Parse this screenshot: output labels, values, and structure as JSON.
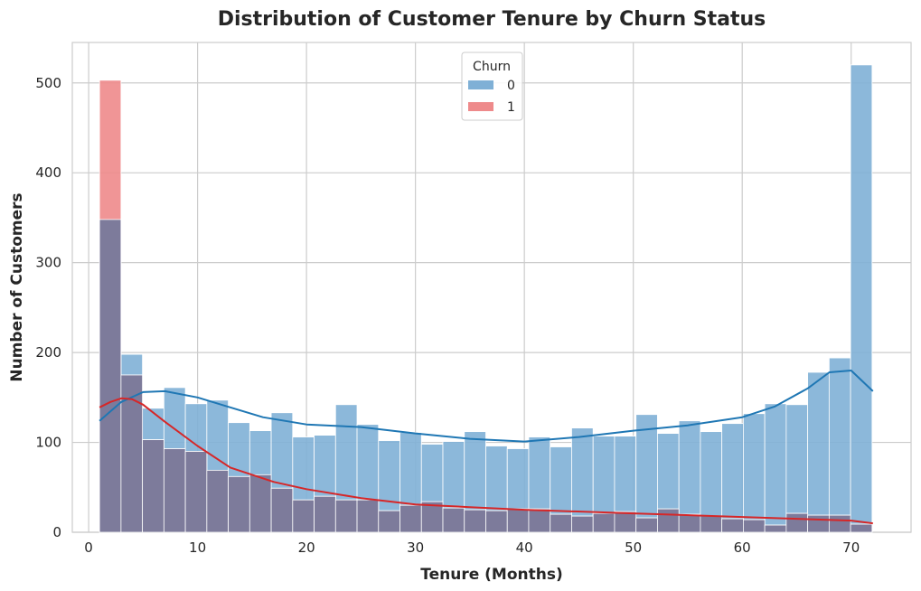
{
  "chart_data": {
    "type": "histogram",
    "title": "Distribution of Customer Tenure by Churn Status",
    "xlabel": "Tenure (Months)",
    "ylabel": "Number of Customers",
    "xlim": [
      -1.5,
      75.5
    ],
    "ylim": [
      0,
      545
    ],
    "xticks": [
      0,
      10,
      20,
      30,
      40,
      50,
      60,
      70
    ],
    "yticks": [
      0,
      100,
      200,
      300,
      400,
      500
    ],
    "grid": true,
    "bin_start": 1,
    "bin_width": 1.97,
    "legend": {
      "title": "Churn",
      "placement": "upper-center",
      "entries": [
        {
          "label": "0",
          "color": "#1f77b4"
        },
        {
          "label": "1",
          "color": "#d62728"
        }
      ]
    },
    "series": [
      {
        "label": "0",
        "color": "#1f77b4",
        "values": [
          348,
          198,
          138,
          161,
          143,
          147,
          122,
          113,
          133,
          106,
          108,
          142,
          120,
          102,
          111,
          98,
          101,
          112,
          96,
          93,
          106,
          95,
          116,
          107,
          107,
          131,
          110,
          124,
          112,
          121,
          132,
          143,
          142,
          178,
          194,
          520
        ],
        "kde": [
          [
            1,
            124
          ],
          [
            3,
            145
          ],
          [
            5,
            156
          ],
          [
            7,
            157
          ],
          [
            10,
            150
          ],
          [
            13,
            139
          ],
          [
            16,
            128
          ],
          [
            20,
            120
          ],
          [
            25,
            117
          ],
          [
            30,
            110
          ],
          [
            35,
            104
          ],
          [
            40,
            101
          ],
          [
            45,
            106
          ],
          [
            50,
            113
          ],
          [
            55,
            119
          ],
          [
            60,
            128
          ],
          [
            63,
            140
          ],
          [
            66,
            160
          ],
          [
            68,
            178
          ],
          [
            70,
            180
          ],
          [
            72,
            157
          ]
        ]
      },
      {
        "label": "1",
        "color": "#d62728",
        "values": [
          503,
          175,
          103,
          93,
          90,
          69,
          62,
          64,
          49,
          36,
          40,
          36,
          36,
          24,
          30,
          34,
          27,
          25,
          24,
          26,
          26,
          20,
          18,
          21,
          23,
          16,
          26,
          20,
          18,
          15,
          14,
          8,
          21,
          19,
          19,
          9
        ],
        "kde": [
          [
            1,
            139
          ],
          [
            2,
            145
          ],
          [
            3,
            149
          ],
          [
            4,
            148
          ],
          [
            5,
            142
          ],
          [
            7,
            123
          ],
          [
            10,
            96
          ],
          [
            13,
            72
          ],
          [
            17,
            56
          ],
          [
            20,
            48
          ],
          [
            25,
            38
          ],
          [
            30,
            31
          ],
          [
            35,
            28
          ],
          [
            40,
            25
          ],
          [
            50,
            21
          ],
          [
            60,
            17
          ],
          [
            65,
            15
          ],
          [
            70,
            13
          ],
          [
            72,
            10
          ]
        ]
      }
    ]
  }
}
